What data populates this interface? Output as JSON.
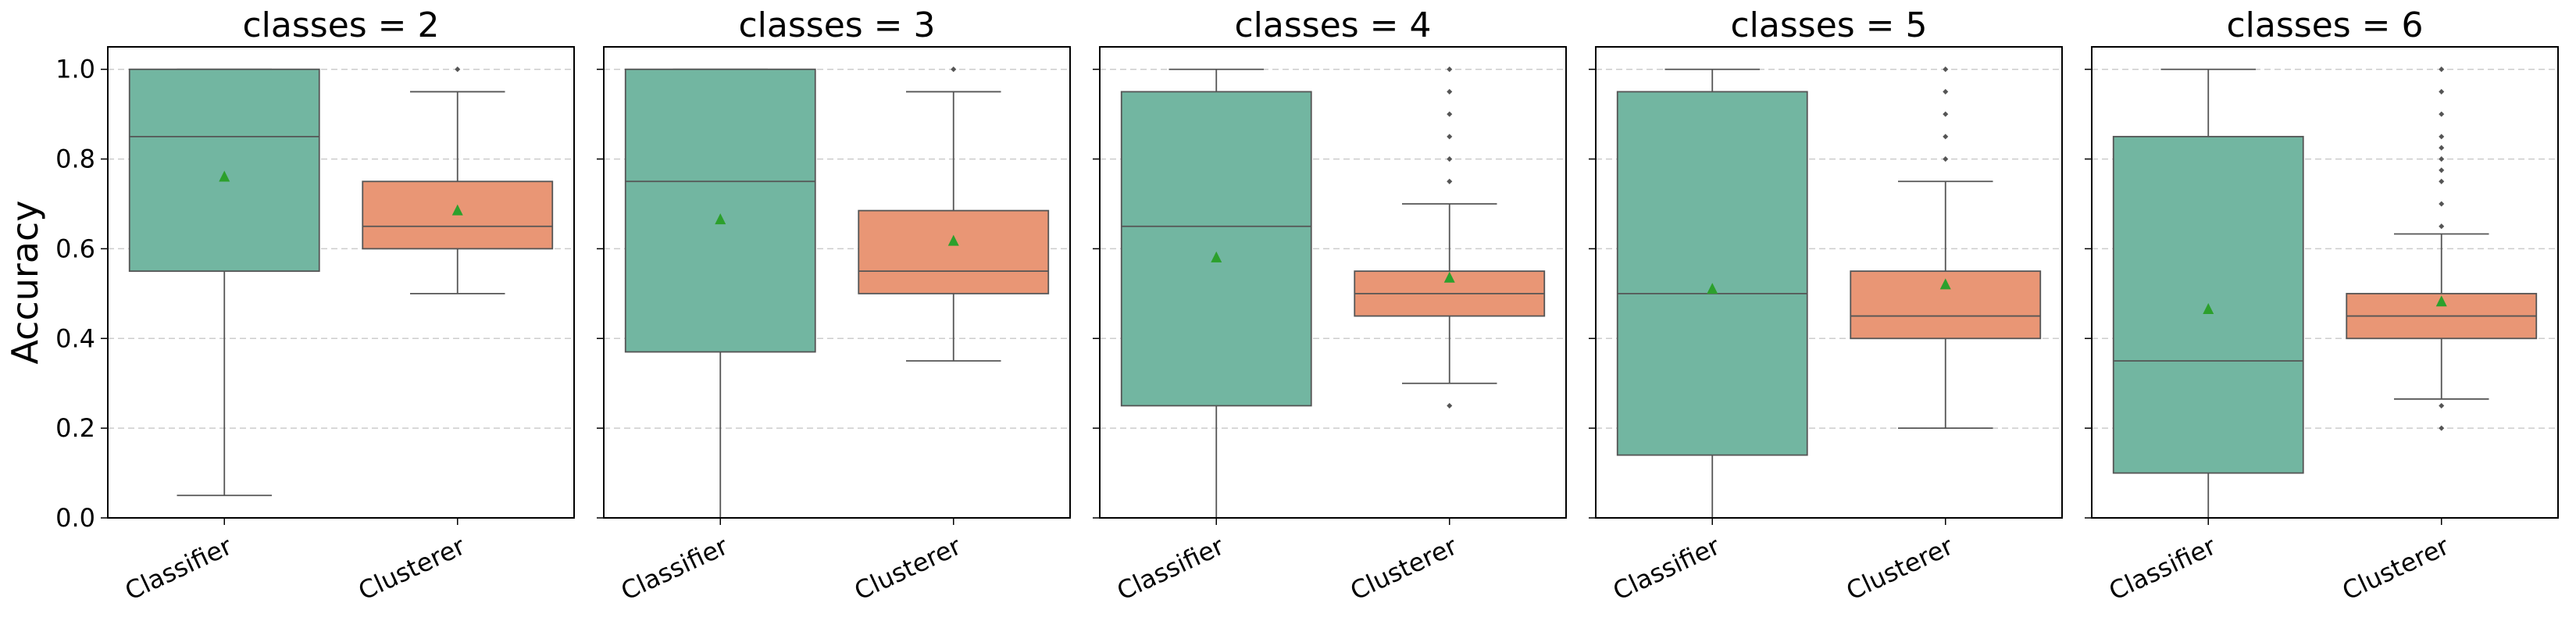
{
  "chart_data": {
    "type": "box",
    "ylabel": "Accuracy",
    "ylim": [
      0.0,
      1.05
    ],
    "yticks": [
      0.0,
      0.2,
      0.4,
      0.6,
      0.8,
      1.0
    ],
    "ytick_labels": [
      "0.0",
      "0.2",
      "0.4",
      "0.6",
      "0.8",
      "1.0"
    ],
    "grid": "y-dashed",
    "categories": [
      "Classifier",
      "Clusterer"
    ],
    "colors": {
      "Classifier": "#72b6a1",
      "Clusterer": "#e99675",
      "mean_marker": "#2ca02c"
    },
    "panels": [
      {
        "title": "classes = 2",
        "boxes": [
          {
            "category": "Classifier",
            "whislo": 0.05,
            "q1": 0.55,
            "median": 0.85,
            "q3": 1.0,
            "whishi": 1.0,
            "mean": 0.76,
            "fliers": []
          },
          {
            "category": "Clusterer",
            "whislo": 0.5,
            "q1": 0.6,
            "median": 0.65,
            "q3": 0.75,
            "whishi": 0.95,
            "mean": 0.685,
            "fliers": [
              1.0
            ]
          }
        ]
      },
      {
        "title": "classes = 3",
        "boxes": [
          {
            "category": "Classifier",
            "whislo": 0.0,
            "q1": 0.37,
            "median": 0.75,
            "q3": 1.0,
            "whishi": 1.0,
            "mean": 0.665,
            "fliers": []
          },
          {
            "category": "Clusterer",
            "whislo": 0.35,
            "q1": 0.5,
            "median": 0.55,
            "q3": 0.685,
            "whishi": 0.95,
            "mean": 0.617,
            "fliers": [
              1.0
            ]
          }
        ]
      },
      {
        "title": "classes = 4",
        "boxes": [
          {
            "category": "Classifier",
            "whislo": 0.0,
            "q1": 0.25,
            "median": 0.65,
            "q3": 0.95,
            "whishi": 1.0,
            "mean": 0.58,
            "fliers": []
          },
          {
            "category": "Clusterer",
            "whislo": 0.3,
            "q1": 0.45,
            "median": 0.5,
            "q3": 0.55,
            "whishi": 0.7,
            "mean": 0.535,
            "fliers": [
              0.25,
              0.75,
              0.8,
              0.85,
              0.9,
              0.95,
              1.0
            ]
          }
        ]
      },
      {
        "title": "classes = 5",
        "boxes": [
          {
            "category": "Classifier",
            "whislo": 0.0,
            "q1": 0.14,
            "median": 0.5,
            "q3": 0.95,
            "whishi": 1.0,
            "mean": 0.51,
            "fliers": []
          },
          {
            "category": "Clusterer",
            "whislo": 0.2,
            "q1": 0.4,
            "median": 0.45,
            "q3": 0.55,
            "whishi": 0.75,
            "mean": 0.52,
            "fliers": [
              0.8,
              0.85,
              0.9,
              0.95,
              1.0
            ]
          }
        ]
      },
      {
        "title": "classes = 6",
        "boxes": [
          {
            "category": "Classifier",
            "whislo": 0.0,
            "q1": 0.1,
            "median": 0.35,
            "q3": 0.85,
            "whishi": 1.0,
            "mean": 0.465,
            "fliers": []
          },
          {
            "category": "Clusterer",
            "whislo": 0.265,
            "q1": 0.4,
            "median": 0.45,
            "q3": 0.5,
            "whishi": 0.633,
            "mean": 0.482,
            "fliers": [
              0.2,
              0.25,
              0.65,
              0.7,
              0.75,
              0.775,
              0.8,
              0.825,
              0.85,
              0.9,
              0.95,
              1.0
            ]
          }
        ]
      }
    ]
  }
}
